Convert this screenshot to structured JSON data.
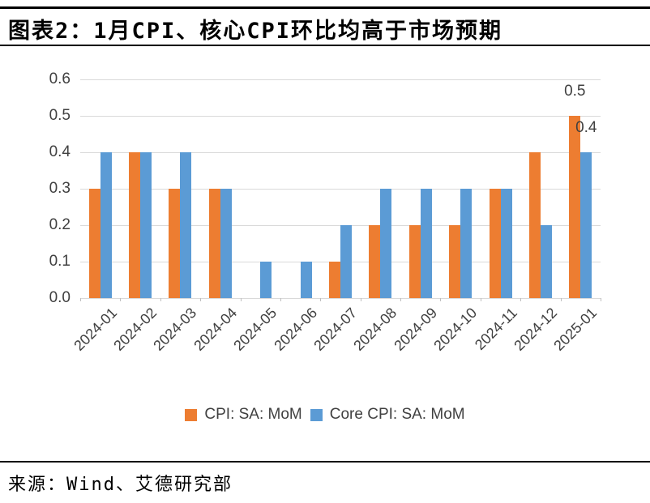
{
  "page": {
    "title": "图表2：1月CPI、核心CPI环比均高于市场预期",
    "source": "来源：Wind、艾德研究部"
  },
  "colors": {
    "cpi_orange": "#ED7D31",
    "core_cpi_blue": "#5B9BD5",
    "gridline": "#D9D9D9",
    "axis_text": "#404040",
    "rule_black": "#000000"
  },
  "chart_data": {
    "type": "bar",
    "categories": [
      "2024-01",
      "2024-02",
      "2024-03",
      "2024-04",
      "2024-05",
      "2024-06",
      "2024-07",
      "2024-08",
      "2024-09",
      "2024-10",
      "2024-11",
      "2024-12",
      "2025-01"
    ],
    "series": [
      {
        "name": "CPI: SA: MoM",
        "color": "#ED7D31",
        "values": [
          0.3,
          0.4,
          0.3,
          0.3,
          0.0,
          0.0,
          0.1,
          0.2,
          0.2,
          0.2,
          0.3,
          0.4,
          0.5
        ]
      },
      {
        "name": "Core CPI: SA: MoM",
        "color": "#5B9BD5",
        "values": [
          0.4,
          0.4,
          0.4,
          0.3,
          0.1,
          0.1,
          0.2,
          0.3,
          0.3,
          0.3,
          0.3,
          0.2,
          0.4
        ]
      }
    ],
    "title": "",
    "xlabel": "",
    "ylabel": "",
    "ylim": [
      0,
      0.6
    ],
    "ytick_step": 0.1,
    "ytick_labels": [
      "0.0",
      "0.1",
      "0.2",
      "0.3",
      "0.4",
      "0.5",
      "0.6"
    ],
    "grid": true,
    "legend_position": "bottom",
    "data_labels": [
      {
        "series": 0,
        "category": "2025-01",
        "text": "0.5"
      },
      {
        "series": 1,
        "category": "2025-01",
        "text": "0.4"
      }
    ]
  }
}
